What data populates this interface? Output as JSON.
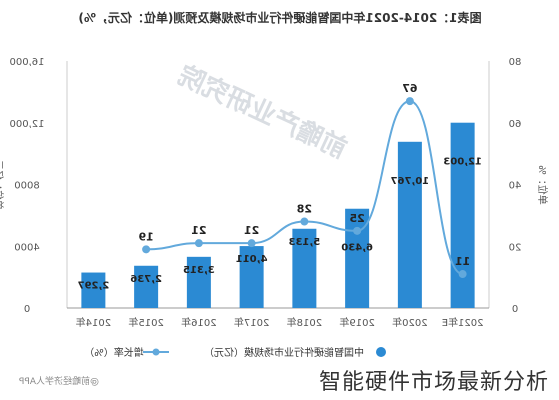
{
  "chart_data": {
    "type": "bar",
    "title": "图表1：2014-2021年中国智能硬件行业市场规模及预测(单位：亿元，%)",
    "categories": [
      "2014年",
      "2015年",
      "2016年",
      "2017年",
      "2018年",
      "2019年",
      "2020年",
      "2021年E"
    ],
    "series": [
      {
        "name": "中国智能硬件行业市场规模（亿元）",
        "kind": "bar",
        "axis": "right",
        "values": [
          2297,
          2736,
          3315,
          4011,
          5133,
          6430,
          10767,
          12003
        ],
        "labels": [
          "2,297",
          "2,736",
          "3,315",
          "4,011",
          "5,133",
          "6,430",
          "10,767",
          "12,003"
        ]
      },
      {
        "name": "增长率（%）",
        "kind": "line",
        "axis": "left",
        "values": [
          null,
          19,
          21,
          21,
          28,
          25,
          67,
          11
        ],
        "labels": [
          "",
          "19",
          "21",
          "21",
          "28",
          "25",
          "67",
          "11"
        ]
      }
    ],
    "left_axis": {
      "label": "单位：%",
      "ylim": [
        0,
        80
      ],
      "ticks": [
        "0",
        "20",
        "40",
        "60",
        "80"
      ]
    },
    "right_axis": {
      "label": "单位：亿元",
      "ylim": [
        0,
        16000
      ],
      "ticks": [
        "0",
        "4000",
        "8000",
        "12,000",
        "16,000"
      ]
    },
    "orientation": "mirrored",
    "legend_position": "bottom",
    "watermark": "前瞻产业研究院",
    "source_footer": "@前瞻经济学人APP",
    "colors": {
      "bar": "#2b8ad3",
      "line": "#62a9dc",
      "axis": "#333333",
      "text": "#333333"
    }
  },
  "caption": "智能硬件市场最新分析"
}
